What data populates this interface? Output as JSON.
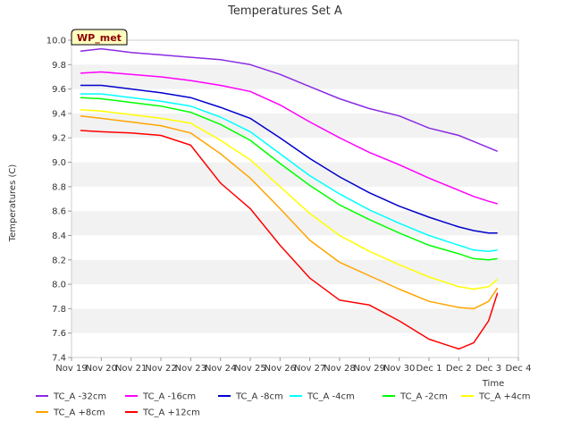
{
  "chart_data": {
    "type": "line",
    "title": "Temperatures Set A",
    "xlabel": "Time",
    "ylabel": "Temperatures (C)",
    "watermark": "WP_met",
    "ylim": [
      7.4,
      10.0
    ],
    "xlim": [
      "Nov 19",
      "Dec 4"
    ],
    "yticks": [
      "7.4",
      "7.6",
      "7.8",
      "8.0",
      "8.2",
      "8.4",
      "8.6",
      "8.8",
      "9.0",
      "9.2",
      "9.4",
      "9.6",
      "9.8",
      "10.0"
    ],
    "xticks": [
      "Nov 19",
      "Nov 20",
      "Nov 21",
      "Nov 22",
      "Nov 23",
      "Nov 24",
      "Nov 25",
      "Nov 26",
      "Nov 27",
      "Nov 28",
      "Nov 29",
      "Nov 30",
      "Dec 1",
      "Dec 2",
      "Dec 3",
      "Dec 4"
    ],
    "grid": "horizontal bands",
    "legend_position": "bottom",
    "x": [
      0.3,
      1,
      2,
      3,
      4,
      5,
      6,
      7,
      8,
      9,
      10,
      11,
      12,
      13,
      13.5,
      14,
      14.3
    ],
    "series": [
      {
        "name": "TC_A -32cm",
        "color": "#8a2be2",
        "values": [
          9.91,
          9.93,
          9.9,
          9.88,
          9.86,
          9.84,
          9.8,
          9.72,
          9.62,
          9.52,
          9.44,
          9.38,
          9.28,
          9.22,
          9.17,
          9.12,
          9.09
        ]
      },
      {
        "name": "TC_A -16cm",
        "color": "#ff00ff",
        "values": [
          9.73,
          9.74,
          9.72,
          9.7,
          9.67,
          9.63,
          9.58,
          9.47,
          9.33,
          9.2,
          9.08,
          8.98,
          8.87,
          8.77,
          8.72,
          8.68,
          8.66
        ]
      },
      {
        "name": "TC_A -8cm",
        "color": "#0000cd",
        "values": [
          9.63,
          9.63,
          9.6,
          9.57,
          9.53,
          9.45,
          9.36,
          9.2,
          9.03,
          8.88,
          8.75,
          8.64,
          8.55,
          8.47,
          8.44,
          8.42,
          8.42
        ]
      },
      {
        "name": "TC_A -4cm",
        "color": "#00ffff",
        "values": [
          9.56,
          9.56,
          9.53,
          9.5,
          9.46,
          9.37,
          9.25,
          9.07,
          8.89,
          8.74,
          8.61,
          8.5,
          8.4,
          8.32,
          8.28,
          8.27,
          8.28
        ]
      },
      {
        "name": "TC_A -2cm",
        "color": "#00ff00",
        "values": [
          9.53,
          9.52,
          9.49,
          9.46,
          9.41,
          9.31,
          9.18,
          8.99,
          8.81,
          8.65,
          8.53,
          8.42,
          8.32,
          8.25,
          8.21,
          8.2,
          8.21
        ]
      },
      {
        "name": "TC_A +4cm",
        "color": "#ffff00",
        "values": [
          9.43,
          9.42,
          9.39,
          9.36,
          9.32,
          9.18,
          9.02,
          8.8,
          8.58,
          8.4,
          8.27,
          8.16,
          8.06,
          7.98,
          7.96,
          7.98,
          8.04
        ]
      },
      {
        "name": "TC_A +8cm",
        "color": "#ffa500",
        "values": [
          9.38,
          9.36,
          9.33,
          9.3,
          9.24,
          9.07,
          8.87,
          8.62,
          8.36,
          8.18,
          8.07,
          7.96,
          7.86,
          7.81,
          7.8,
          7.86,
          7.97
        ]
      },
      {
        "name": "TC_A +12cm",
        "color": "#ff0000",
        "values": [
          9.26,
          9.25,
          9.24,
          9.22,
          9.14,
          8.83,
          8.62,
          8.32,
          8.05,
          7.87,
          7.83,
          7.7,
          7.55,
          7.47,
          7.52,
          7.7,
          7.93
        ]
      }
    ]
  }
}
